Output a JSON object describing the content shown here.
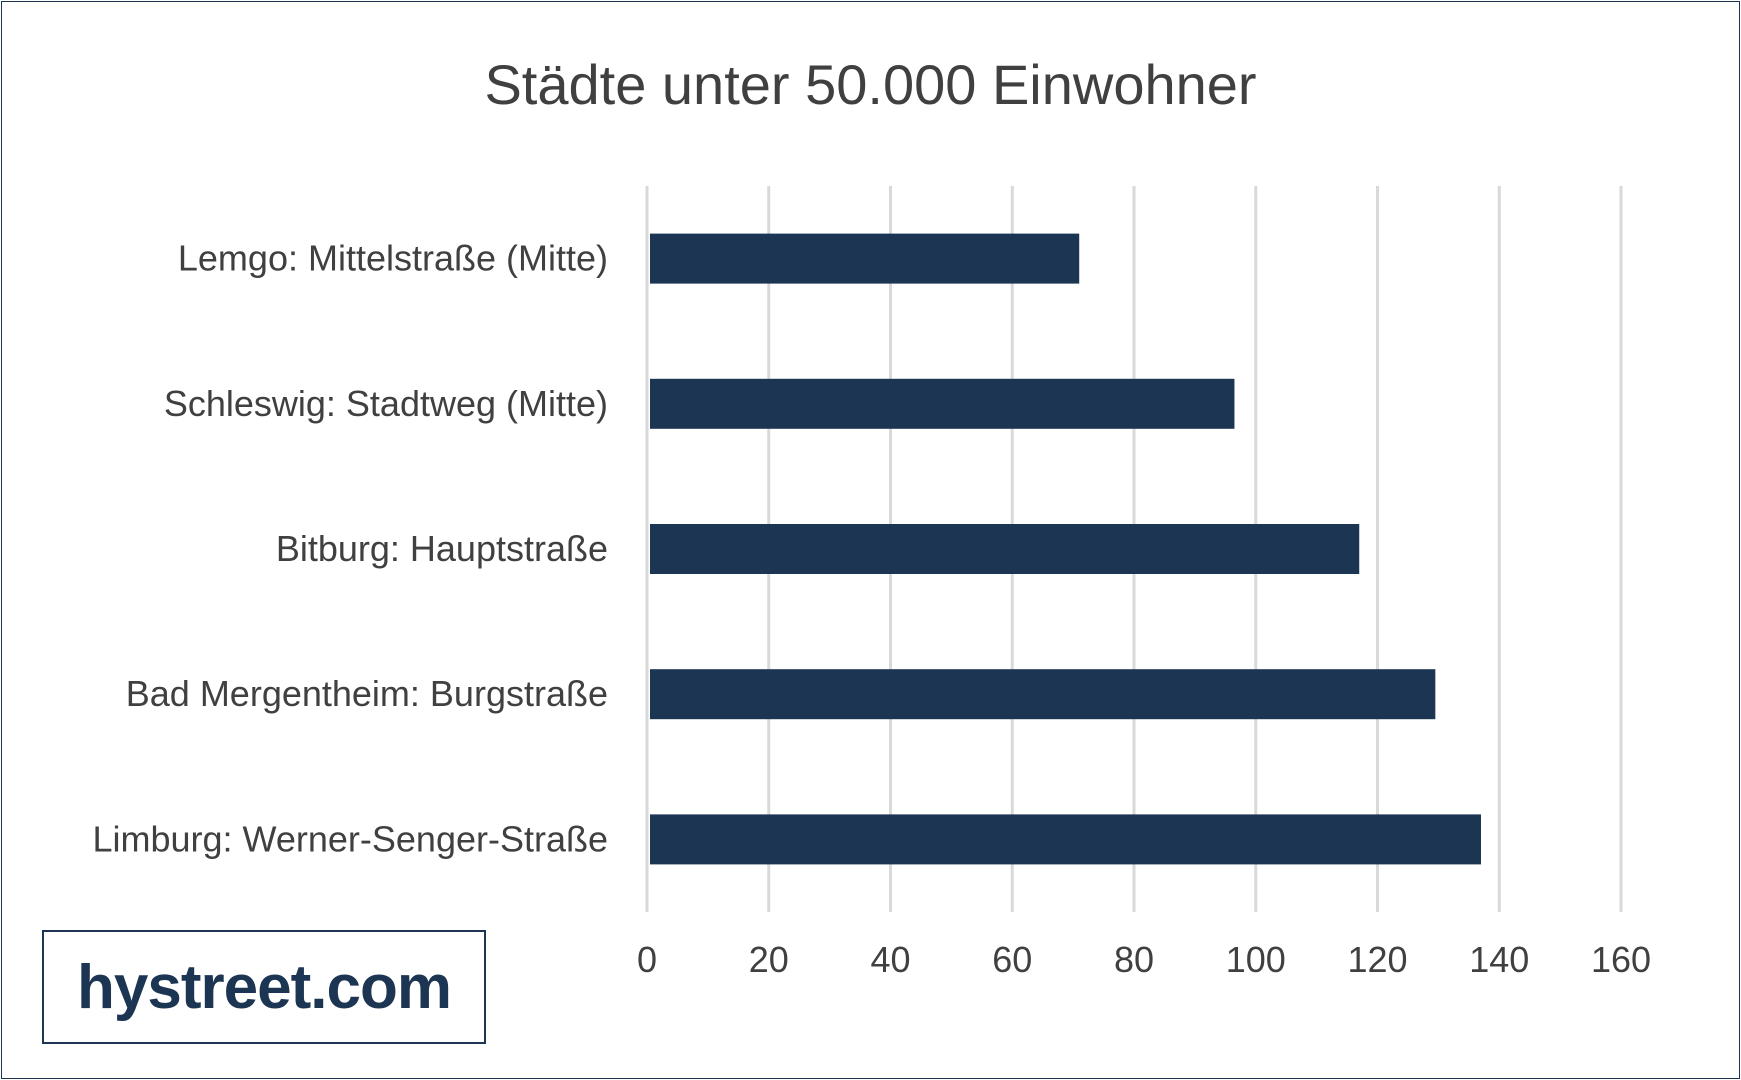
{
  "chart_data": {
    "type": "bar",
    "orientation": "horizontal",
    "title": "Städte unter 50.000 Einwohner",
    "categories": [
      "Lemgo: Mittelstraße (Mitte)",
      "Schleswig: Stadtweg (Mitte)",
      "Bitburg: Hauptstraße",
      "Bad Mergentheim: Burgstraße",
      "Limburg: Werner-Senger-Straße"
    ],
    "values": [
      71,
      96.5,
      117,
      129.5,
      137
    ],
    "xlim": [
      0,
      160
    ],
    "xticks": [
      "0",
      "20",
      "40",
      "60",
      "80",
      "100",
      "120",
      "140",
      "160"
    ],
    "grid": "vertical",
    "legend": "none",
    "bar_color": "#1b3553",
    "grid_color": "#d9d9d9"
  },
  "logo": {
    "text": "hystreet.com",
    "color": "#1b3553"
  }
}
